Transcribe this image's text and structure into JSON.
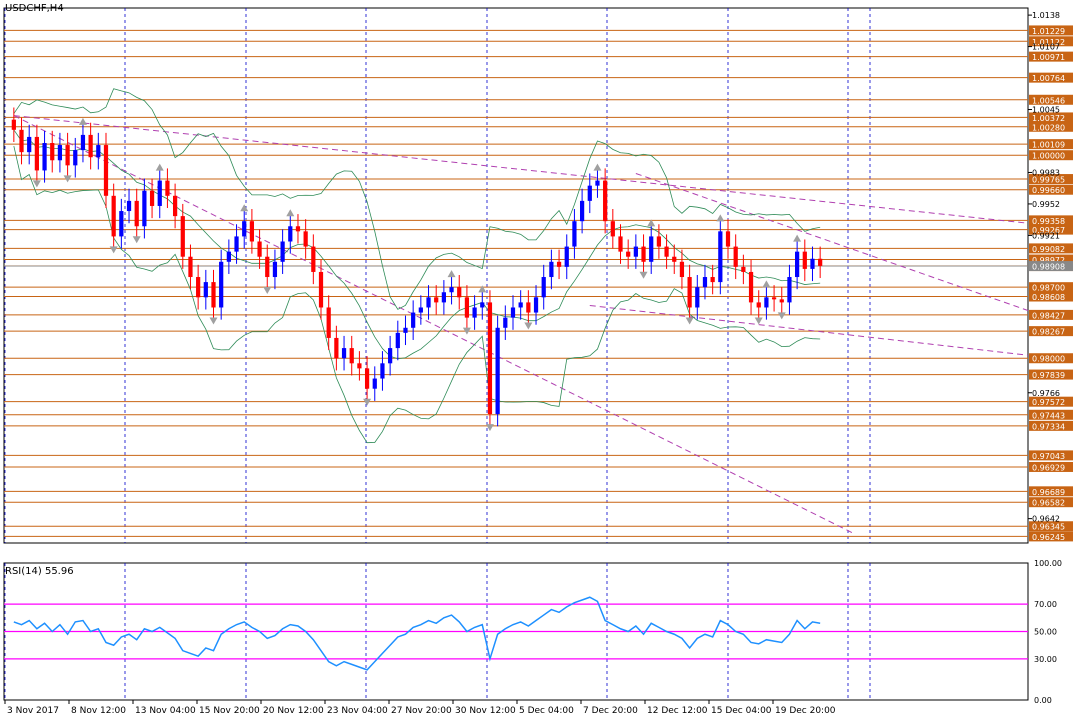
{
  "window": {
    "title": "USDCHF,H4",
    "indicator_title": "RSI(14) 55.96"
  },
  "colors": {
    "bull": "#0000ff",
    "bear": "#ff0000",
    "level_line": "#c86414",
    "trend_line": "#b040b0",
    "bollinger": "#2e8b57",
    "rsi_line": "#1e90ff",
    "rsi_level": "#ff00ff",
    "grid": "#0000cc",
    "price_badge_bg": "#c86414",
    "fractal": "#a0a0a0"
  },
  "chart_data": [
    {
      "type": "candlestick",
      "symbol": "USDCHF",
      "timeframe": "H4",
      "ylim": [
        0.9618,
        1.0145
      ],
      "price_scale_ticks": [
        1.0138,
        1.0107,
        1.0045,
        0.9983,
        0.9952,
        0.9921,
        0.9766,
        0.9642
      ],
      "horizontal_levels": [
        1.01229,
        1.01122,
        1.00971,
        1.00764,
        1.00546,
        1.00372,
        1.0028,
        1.00109,
        1.0,
        0.99765,
        0.9966,
        0.99358,
        0.99267,
        0.99082,
        0.98972,
        0.98908,
        0.987,
        0.98608,
        0.98427,
        0.98267,
        0.98,
        0.97839,
        0.97572,
        0.97443,
        0.97334,
        0.97043,
        0.96929,
        0.96689,
        0.96582,
        0.96345,
        0.96245
      ],
      "current_price": 0.98908,
      "x_labels": [
        "3 Nov 2017",
        "8 Nov 12:00",
        "13 Nov 04:00",
        "15 Nov 20:00",
        "20 Nov 12:00",
        "23 Nov 04:00",
        "27 Nov 20:00",
        "30 Nov 12:00",
        "5 Dec 04:00",
        "7 Dec 20:00",
        "12 Dec 12:00",
        "15 Dec 04:00",
        "19 Dec 20:00"
      ],
      "trend_lines": [
        {
          "from": [
            0,
            1.0039
          ],
          "to": [
            145,
            0.9933
          ]
        },
        {
          "from": [
            0,
            1.0039
          ],
          "to": [
            104,
            0.9628
          ]
        },
        {
          "from": [
            75,
            0.9852
          ],
          "to": [
            145,
            0.9803
          ]
        },
        {
          "from": [
            81,
            0.9982
          ],
          "to": [
            145,
            0.9847
          ]
        }
      ],
      "prices": [
        1.0025,
        1.0003,
        1.0018,
        0.9985,
        1.0012,
        0.9995,
        1.001,
        0.999,
        1.0005,
        1.002,
        0.9998,
        1.001,
        0.996,
        0.992,
        0.9945,
        0.9955,
        0.993,
        0.9965,
        0.995,
        0.9975,
        0.996,
        0.994,
        0.99,
        0.988,
        0.986,
        0.9875,
        0.985,
        0.9895,
        0.9905,
        0.992,
        0.9935,
        0.9915,
        0.99,
        0.988,
        0.9895,
        0.9915,
        0.993,
        0.9925,
        0.991,
        0.9885,
        0.985,
        0.982,
        0.98,
        0.981,
        0.9795,
        0.979,
        0.977,
        0.978,
        0.9795,
        0.981,
        0.9825,
        0.983,
        0.9845,
        0.985,
        0.986,
        0.9855,
        0.9865,
        0.987,
        0.986,
        0.984,
        0.985,
        0.9855,
        0.9745,
        0.983,
        0.984,
        0.985,
        0.9855,
        0.9845,
        0.986,
        0.988,
        0.9895,
        0.989,
        0.991,
        0.9935,
        0.9955,
        0.997,
        0.9975,
        0.9935,
        0.992,
        0.9905,
        0.99,
        0.991,
        0.9895,
        0.992,
        0.991,
        0.99,
        0.9895,
        0.988,
        0.985,
        0.987,
        0.988,
        0.9875,
        0.9925,
        0.991,
        0.989,
        0.9885,
        0.9855,
        0.985,
        0.986,
        0.9858,
        0.9855,
        0.988,
        0.9905,
        0.9888,
        0.9898,
        0.9891
      ],
      "ohlc_note": "approximate close-path reconstruction",
      "rsi": {
        "title": "RSI(14) 55.96",
        "value": 55.96,
        "ylim": [
          0,
          100
        ],
        "ticks": [
          100,
          70,
          50,
          30,
          0
        ],
        "levels": [
          70,
          50,
          30
        ],
        "values": [
          57,
          55,
          58,
          52,
          56,
          50,
          55,
          48,
          57,
          58,
          50,
          52,
          42,
          40,
          46,
          48,
          44,
          52,
          50,
          53,
          49,
          45,
          36,
          34,
          32,
          38,
          36,
          48,
          52,
          55,
          57,
          53,
          50,
          45,
          47,
          52,
          55,
          54,
          50,
          44,
          36,
          28,
          25,
          28,
          26,
          24,
          22,
          28,
          34,
          40,
          46,
          48,
          53,
          55,
          58,
          56,
          60,
          62,
          57,
          50,
          53,
          55,
          30,
          48,
          52,
          55,
          57,
          54,
          58,
          62,
          66,
          64,
          68,
          71,
          73,
          75,
          72,
          58,
          55,
          52,
          50,
          54,
          48,
          56,
          53,
          50,
          48,
          45,
          38,
          45,
          48,
          46,
          58,
          55,
          50,
          48,
          42,
          41,
          44,
          43,
          42,
          48,
          58,
          52,
          57,
          56
        ]
      }
    }
  ]
}
